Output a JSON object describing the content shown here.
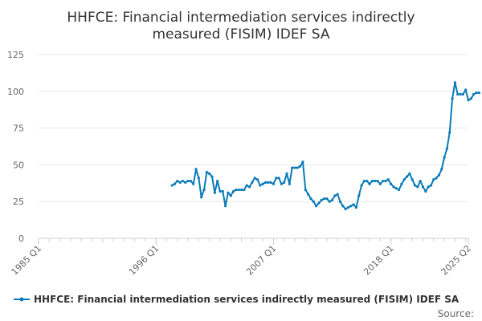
{
  "chart_data": {
    "type": "line",
    "title": "HHFCE: Financial intermediation services indirectly measured (FISIM) IDEF SA",
    "title_lines": [
      "HHFCE: Financial intermediation services indirectly",
      "measured (FISIM) IDEF SA"
    ],
    "xlabel": "",
    "ylabel": "",
    "ylim": [
      0,
      125
    ],
    "yticks": [
      0,
      25,
      50,
      75,
      100,
      125
    ],
    "xlim": [
      "1985 Q1",
      "2025 Q2"
    ],
    "xticks": [
      "1985 Q1",
      "1996 Q1",
      "2007 Q1",
      "2018 Q1",
      "2025 Q2"
    ],
    "grid": "horizontal",
    "legend_position": "bottom",
    "source_label": "Source:",
    "series": [
      {
        "name": "HHFCE: Financial intermediation services indirectly measured (FISIM) IDEF SA",
        "color": "#0a7ab8",
        "points": [
          [
            "1997 Q3",
            36
          ],
          [
            "1997 Q4",
            37
          ],
          [
            "1998 Q1",
            39
          ],
          [
            "1998 Q2",
            38
          ],
          [
            "1998 Q3",
            39
          ],
          [
            "1998 Q4",
            38
          ],
          [
            "1999 Q1",
            39
          ],
          [
            "1999 Q2",
            39
          ],
          [
            "1999 Q3",
            37
          ],
          [
            "1999 Q4",
            47
          ],
          [
            "2000 Q1",
            41
          ],
          [
            "2000 Q2",
            28
          ],
          [
            "2000 Q3",
            33
          ],
          [
            "2000 Q4",
            45
          ],
          [
            "2001 Q1",
            44
          ],
          [
            "2001 Q2",
            42
          ],
          [
            "2001 Q3",
            31
          ],
          [
            "2001 Q4",
            39
          ],
          [
            "2002 Q1",
            32
          ],
          [
            "2002 Q2",
            32
          ],
          [
            "2002 Q3",
            22
          ],
          [
            "2002 Q4",
            31
          ],
          [
            "2003 Q1",
            29
          ],
          [
            "2003 Q2",
            32
          ],
          [
            "2003 Q3",
            33
          ],
          [
            "2003 Q4",
            33
          ],
          [
            "2004 Q1",
            33
          ],
          [
            "2004 Q2",
            33
          ],
          [
            "2004 Q3",
            36
          ],
          [
            "2004 Q4",
            35
          ],
          [
            "2005 Q1",
            38
          ],
          [
            "2005 Q2",
            41
          ],
          [
            "2005 Q3",
            40
          ],
          [
            "2005 Q4",
            36
          ],
          [
            "2006 Q1",
            37
          ],
          [
            "2006 Q2",
            38
          ],
          [
            "2006 Q3",
            38
          ],
          [
            "2006 Q4",
            38
          ],
          [
            "2007 Q1",
            37
          ],
          [
            "2007 Q2",
            41
          ],
          [
            "2007 Q3",
            41
          ],
          [
            "2007 Q4",
            37
          ],
          [
            "2008 Q1",
            38
          ],
          [
            "2008 Q2",
            44
          ],
          [
            "2008 Q3",
            37
          ],
          [
            "2008 Q4",
            48
          ],
          [
            "2009 Q1",
            48
          ],
          [
            "2009 Q2",
            48
          ],
          [
            "2009 Q3",
            49
          ],
          [
            "2009 Q4",
            52
          ],
          [
            "2010 Q1",
            33
          ],
          [
            "2010 Q2",
            30
          ],
          [
            "2010 Q3",
            27
          ],
          [
            "2010 Q4",
            25
          ],
          [
            "2011 Q1",
            22
          ],
          [
            "2011 Q2",
            24
          ],
          [
            "2011 Q3",
            26
          ],
          [
            "2011 Q4",
            27
          ],
          [
            "2012 Q1",
            27
          ],
          [
            "2012 Q2",
            25
          ],
          [
            "2012 Q3",
            26
          ],
          [
            "2012 Q4",
            29
          ],
          [
            "2013 Q1",
            30
          ],
          [
            "2013 Q2",
            25
          ],
          [
            "2013 Q3",
            22
          ],
          [
            "2013 Q4",
            20
          ],
          [
            "2014 Q1",
            21
          ],
          [
            "2014 Q2",
            22
          ],
          [
            "2014 Q3",
            23
          ],
          [
            "2014 Q4",
            21
          ],
          [
            "2015 Q1",
            29
          ],
          [
            "2015 Q2",
            36
          ],
          [
            "2015 Q3",
            39
          ],
          [
            "2015 Q4",
            39
          ],
          [
            "2016 Q1",
            37
          ],
          [
            "2016 Q2",
            39
          ],
          [
            "2016 Q3",
            39
          ],
          [
            "2016 Q4",
            39
          ],
          [
            "2017 Q1",
            37
          ],
          [
            "2017 Q2",
            39
          ],
          [
            "2017 Q3",
            39
          ],
          [
            "2017 Q4",
            40
          ],
          [
            "2018 Q1",
            37
          ],
          [
            "2018 Q2",
            35
          ],
          [
            "2018 Q3",
            34
          ],
          [
            "2018 Q4",
            33
          ],
          [
            "2019 Q1",
            37
          ],
          [
            "2019 Q2",
            40
          ],
          [
            "2019 Q3",
            42
          ],
          [
            "2019 Q4",
            44
          ],
          [
            "2020 Q1",
            40
          ],
          [
            "2020 Q2",
            36
          ],
          [
            "2020 Q3",
            35
          ],
          [
            "2020 Q4",
            39
          ],
          [
            "2021 Q1",
            35
          ],
          [
            "2021 Q2",
            32
          ],
          [
            "2021 Q3",
            35
          ],
          [
            "2021 Q4",
            36
          ],
          [
            "2022 Q1",
            40
          ],
          [
            "2022 Q2",
            41
          ],
          [
            "2022 Q3",
            43
          ],
          [
            "2022 Q4",
            47
          ],
          [
            "2023 Q1",
            55
          ],
          [
            "2023 Q2",
            61
          ],
          [
            "2023 Q3",
            72
          ],
          [
            "2023 Q4",
            95
          ],
          [
            "2024 Q1",
            106
          ],
          [
            "2024 Q2",
            98
          ],
          [
            "2024 Q3",
            98
          ],
          [
            "2024 Q4",
            98
          ],
          [
            "2025 Q1",
            101
          ],
          [
            "2025 Q2",
            94
          ],
          [
            "2025 Q3",
            95
          ],
          [
            "2025 Q4",
            98
          ],
          [
            "2026 Q1",
            99
          ],
          [
            "2026 Q2",
            99
          ]
        ]
      }
    ]
  }
}
